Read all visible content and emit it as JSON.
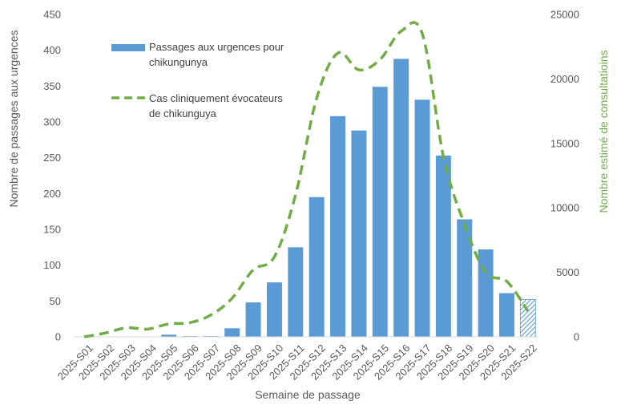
{
  "chart_data": {
    "type": "bar",
    "categories": [
      "2025-S01",
      "2025-S02",
      "2025-S03",
      "2025-S04",
      "2025-S05",
      "2025-S06",
      "2025-S07",
      "2025-S08",
      "2025-S09",
      "2025-S10",
      "2025-S11",
      "2025-S12",
      "2025-S13",
      "2025-S14",
      "2025-S15",
      "2025-S16",
      "2025-S17",
      "2025-S18",
      "2025-S19",
      "2025-S20",
      "2025-S21",
      "2025-S22"
    ],
    "series": [
      {
        "name": "Passages aux urgences pour chikungunya",
        "axis": "left",
        "kind": "bar",
        "color": "#5b9bd5",
        "values": [
          0,
          0,
          0,
          0,
          3,
          1,
          1,
          12,
          48,
          76,
          125,
          195,
          308,
          288,
          349,
          388,
          331,
          253,
          164,
          122,
          61,
          52
        ],
        "last_point_partial": true
      },
      {
        "name": "Cas cliniquement évocateurs de chikunguya",
        "axis": "right",
        "kind": "line",
        "style": "dashed",
        "color": "#70ad47",
        "values": [
          0,
          300,
          700,
          600,
          1000,
          1100,
          1700,
          3000,
          5200,
          6200,
          11000,
          18500,
          22000,
          20700,
          21500,
          23700,
          23500,
          14000,
          8700,
          5000,
          4300,
          2000
        ]
      }
    ],
    "xlabel": "Semaine de passage",
    "ylabel_left": "Nombre de passages aux urgences",
    "ylabel_right": "Nombre estimé de consultatioins",
    "ylim_left": [
      0,
      450
    ],
    "ylim_right": [
      0,
      25000
    ],
    "yticks_left": [
      "0",
      "50",
      "100",
      "150",
      "200",
      "250",
      "300",
      "350",
      "400",
      "450"
    ],
    "yticks_right": [
      "0",
      "5000",
      "10000",
      "15000",
      "20000",
      "25000"
    ],
    "grid": false,
    "legend_position": "top-left"
  },
  "legend": {
    "bar_label_line1": "Passages aux urgences pour",
    "bar_label_line2": "chikungunya",
    "line_label_line1": "Cas cliniquement évocateurs",
    "line_label_line2": "de chikunguya"
  }
}
